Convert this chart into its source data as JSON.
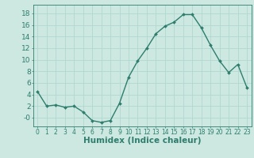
{
  "x": [
    0,
    1,
    2,
    3,
    4,
    5,
    6,
    7,
    8,
    9,
    10,
    11,
    12,
    13,
    14,
    15,
    16,
    17,
    18,
    19,
    20,
    21,
    22,
    23
  ],
  "y": [
    4.5,
    2.0,
    2.2,
    1.8,
    2.0,
    1.0,
    -0.5,
    -0.8,
    -0.5,
    2.5,
    7.0,
    9.8,
    12.0,
    14.5,
    15.8,
    16.5,
    17.8,
    17.8,
    15.5,
    12.5,
    9.8,
    7.8,
    9.2,
    5.2
  ],
  "line_color": "#2e7d6e",
  "marker": "D",
  "marker_size": 2.0,
  "bg_color": "#cce8e0",
  "grid_color": "#b0d8cf",
  "xlabel": "Humidex (Indice chaleur)",
  "xlim": [
    -0.5,
    23.5
  ],
  "ylim": [
    -1.5,
    19.5
  ],
  "yticks": [
    0,
    2,
    4,
    6,
    8,
    10,
    12,
    14,
    16,
    18
  ],
  "ytick_labels": [
    "-0",
    "2",
    "4",
    "6",
    "8",
    "10",
    "12",
    "14",
    "16",
    "18"
  ],
  "xticks": [
    0,
    1,
    2,
    3,
    4,
    5,
    6,
    7,
    8,
    9,
    10,
    11,
    12,
    13,
    14,
    15,
    16,
    17,
    18,
    19,
    20,
    21,
    22,
    23
  ],
  "xlabel_fontsize": 7.5,
  "ytick_fontsize": 6.5,
  "xtick_fontsize": 5.5,
  "line_width": 1.0
}
